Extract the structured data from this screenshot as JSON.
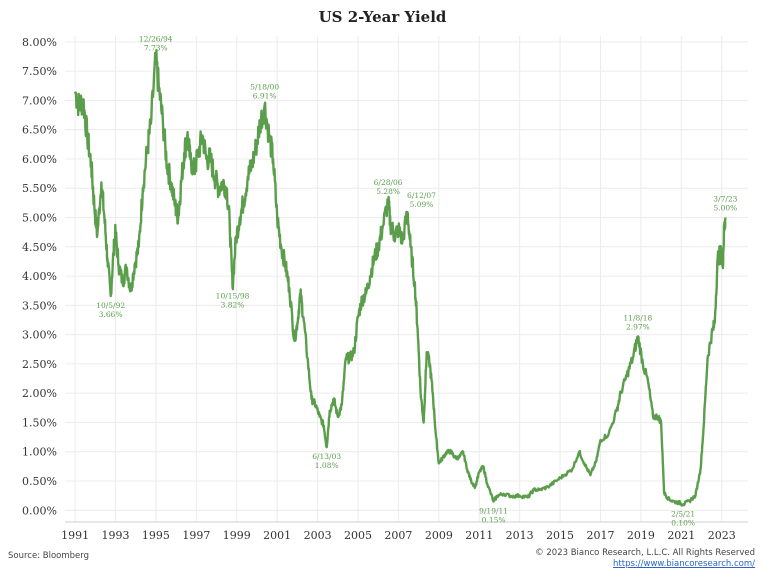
{
  "chart_data": {
    "type": "line",
    "title": "US 2-Year Yield",
    "xlabel": "",
    "ylabel": "",
    "x_range": [
      1990.5,
      2024.3
    ],
    "ylim": [
      -0.2,
      8.1
    ],
    "y_ticks": [
      0.0,
      0.5,
      1.0,
      1.5,
      2.0,
      2.5,
      3.0,
      3.5,
      4.0,
      4.5,
      5.0,
      5.5,
      6.0,
      6.5,
      7.0,
      7.5,
      8.0
    ],
    "y_tick_labels": [
      "0.00%",
      "0.50%",
      "1.00%",
      "1.50%",
      "2.00%",
      "2.50%",
      "3.00%",
      "3.50%",
      "4.00%",
      "4.50%",
      "5.00%",
      "5.50%",
      "6.00%",
      "6.50%",
      "7.00%",
      "7.50%",
      "8.00%"
    ],
    "x_ticks": [
      1991,
      1993,
      1995,
      1997,
      1999,
      2001,
      2003,
      2005,
      2007,
      2009,
      2011,
      2013,
      2015,
      2017,
      2019,
      2021,
      2023
    ],
    "x_tick_labels": [
      "1991",
      "1993",
      "1995",
      "1997",
      "1999",
      "2001",
      "2003",
      "2005",
      "2007",
      "2009",
      "2011",
      "2013",
      "2015",
      "2017",
      "2019",
      "2021",
      "2023"
    ],
    "grid": true,
    "series": [
      {
        "name": "US 2-Year Yield",
        "color": "#5a9e4b",
        "points": [
          [
            1991.0,
            7.15
          ],
          [
            1991.2,
            6.9
          ],
          [
            1991.4,
            7.0
          ],
          [
            1991.6,
            6.4
          ],
          [
            1991.8,
            5.9
          ],
          [
            1991.95,
            5.2
          ],
          [
            1992.1,
            4.7
          ],
          [
            1992.3,
            5.6
          ],
          [
            1992.45,
            5.0
          ],
          [
            1992.6,
            4.3
          ],
          [
            1992.76,
            3.66
          ],
          [
            1992.9,
            4.4
          ],
          [
            1993.0,
            4.75
          ],
          [
            1993.15,
            4.2
          ],
          [
            1993.35,
            3.9
          ],
          [
            1993.55,
            4.15
          ],
          [
            1993.75,
            3.75
          ],
          [
            1993.95,
            4.2
          ],
          [
            1994.15,
            4.5
          ],
          [
            1994.35,
            5.5
          ],
          [
            1994.55,
            6.1
          ],
          [
            1994.75,
            6.6
          ],
          [
            1994.99,
            7.73
          ],
          [
            1995.15,
            7.2
          ],
          [
            1995.35,
            6.6
          ],
          [
            1995.55,
            5.9
          ],
          [
            1995.75,
            5.6
          ],
          [
            1995.95,
            5.2
          ],
          [
            1996.1,
            5.0
          ],
          [
            1996.25,
            5.6
          ],
          [
            1996.4,
            6.1
          ],
          [
            1996.55,
            6.4
          ],
          [
            1996.7,
            6.0
          ],
          [
            1996.9,
            5.8
          ],
          [
            1997.1,
            6.1
          ],
          [
            1997.3,
            6.4
          ],
          [
            1997.5,
            6.0
          ],
          [
            1997.7,
            6.0
          ],
          [
            1997.9,
            5.7
          ],
          [
            1998.1,
            5.5
          ],
          [
            1998.3,
            5.6
          ],
          [
            1998.5,
            5.5
          ],
          [
            1998.65,
            4.9
          ],
          [
            1998.79,
            3.82
          ],
          [
            1998.95,
            4.6
          ],
          [
            1999.15,
            5.0
          ],
          [
            1999.35,
            5.3
          ],
          [
            1999.55,
            5.7
          ],
          [
            1999.75,
            5.9
          ],
          [
            1999.95,
            6.2
          ],
          [
            2000.15,
            6.6
          ],
          [
            2000.38,
            6.91
          ],
          [
            2000.6,
            6.4
          ],
          [
            2000.8,
            6.0
          ],
          [
            2001.0,
            5.0
          ],
          [
            2001.2,
            4.5
          ],
          [
            2001.4,
            4.2
          ],
          [
            2001.6,
            3.8
          ],
          [
            2001.85,
            2.9
          ],
          [
            2002.0,
            3.2
          ],
          [
            2002.15,
            3.7
          ],
          [
            2002.3,
            3.3
          ],
          [
            2002.5,
            2.6
          ],
          [
            2002.7,
            1.9
          ],
          [
            2002.9,
            1.8
          ],
          [
            2003.1,
            1.6
          ],
          [
            2003.3,
            1.45
          ],
          [
            2003.45,
            1.08
          ],
          [
            2003.6,
            1.7
          ],
          [
            2003.8,
            1.9
          ],
          [
            2004.0,
            1.6
          ],
          [
            2004.2,
            1.8
          ],
          [
            2004.4,
            2.6
          ],
          [
            2004.6,
            2.6
          ],
          [
            2004.8,
            2.7
          ],
          [
            2005.0,
            3.3
          ],
          [
            2005.2,
            3.6
          ],
          [
            2005.4,
            3.7
          ],
          [
            2005.6,
            4.0
          ],
          [
            2005.8,
            4.3
          ],
          [
            2006.0,
            4.5
          ],
          [
            2006.2,
            4.8
          ],
          [
            2006.49,
            5.28
          ],
          [
            2006.6,
            4.9
          ],
          [
            2006.8,
            4.7
          ],
          [
            2007.0,
            4.8
          ],
          [
            2007.2,
            4.6
          ],
          [
            2007.45,
            5.09
          ],
          [
            2007.6,
            4.5
          ],
          [
            2007.8,
            3.9
          ],
          [
            2007.95,
            3.1
          ],
          [
            2008.1,
            2.0
          ],
          [
            2008.25,
            1.5
          ],
          [
            2008.4,
            2.7
          ],
          [
            2008.55,
            2.5
          ],
          [
            2008.7,
            2.0
          ],
          [
            2008.85,
            1.3
          ],
          [
            2009.0,
            0.8
          ],
          [
            2009.2,
            0.9
          ],
          [
            2009.4,
            1.0
          ],
          [
            2009.6,
            1.0
          ],
          [
            2009.8,
            0.9
          ],
          [
            2010.0,
            0.9
          ],
          [
            2010.2,
            1.0
          ],
          [
            2010.4,
            0.7
          ],
          [
            2010.6,
            0.5
          ],
          [
            2010.8,
            0.4
          ],
          [
            2011.0,
            0.65
          ],
          [
            2011.2,
            0.75
          ],
          [
            2011.4,
            0.45
          ],
          [
            2011.71,
            0.15
          ],
          [
            2011.9,
            0.25
          ],
          [
            2012.2,
            0.28
          ],
          [
            2012.6,
            0.24
          ],
          [
            2013.0,
            0.25
          ],
          [
            2013.4,
            0.22
          ],
          [
            2013.7,
            0.35
          ],
          [
            2014.0,
            0.35
          ],
          [
            2014.4,
            0.4
          ],
          [
            2014.8,
            0.5
          ],
          [
            2015.2,
            0.6
          ],
          [
            2015.6,
            0.7
          ],
          [
            2015.95,
            1.0
          ],
          [
            2016.2,
            0.8
          ],
          [
            2016.5,
            0.6
          ],
          [
            2016.8,
            0.85
          ],
          [
            2017.0,
            1.2
          ],
          [
            2017.4,
            1.3
          ],
          [
            2017.8,
            1.7
          ],
          [
            2018.0,
            2.0
          ],
          [
            2018.3,
            2.3
          ],
          [
            2018.6,
            2.6
          ],
          [
            2018.85,
            2.97
          ],
          [
            2019.1,
            2.5
          ],
          [
            2019.35,
            2.2
          ],
          [
            2019.6,
            1.6
          ],
          [
            2019.85,
            1.6
          ],
          [
            2020.0,
            1.5
          ],
          [
            2020.15,
            0.3
          ],
          [
            2020.35,
            0.2
          ],
          [
            2020.6,
            0.15
          ],
          [
            2020.9,
            0.13
          ],
          [
            2021.09,
            0.1
          ],
          [
            2021.4,
            0.16
          ],
          [
            2021.7,
            0.25
          ],
          [
            2021.95,
            0.7
          ],
          [
            2022.1,
            1.4
          ],
          [
            2022.3,
            2.6
          ],
          [
            2022.5,
            3.0
          ],
          [
            2022.65,
            3.2
          ],
          [
            2022.8,
            4.3
          ],
          [
            2022.95,
            4.4
          ],
          [
            2023.05,
            4.2
          ],
          [
            2023.12,
            4.8
          ],
          [
            2023.18,
            5.0
          ]
        ]
      }
    ],
    "annotations": [
      {
        "date": "10/5/92",
        "value": "3.66%",
        "x": 1992.76,
        "y": 3.66,
        "pos": "below"
      },
      {
        "date": "12/26/94",
        "value": "7.73%",
        "x": 1994.99,
        "y": 7.73,
        "pos": "above"
      },
      {
        "date": "10/15/98",
        "value": "3.82%",
        "x": 1998.79,
        "y": 3.82,
        "pos": "below"
      },
      {
        "date": "5/18/00",
        "value": "6.91%",
        "x": 2000.38,
        "y": 6.91,
        "pos": "above"
      },
      {
        "date": "6/13/03",
        "value": "1.08%",
        "x": 2003.45,
        "y": 1.08,
        "pos": "below"
      },
      {
        "date": "6/28/06",
        "value": "5.28%",
        "x": 2006.49,
        "y": 5.28,
        "pos": "above"
      },
      {
        "date": "6/12/07",
        "value": "5.09%",
        "x": 2007.45,
        "y": 5.09,
        "pos": "above-right"
      },
      {
        "date": "9/19/11",
        "value": "0.15%",
        "x": 2011.71,
        "y": 0.15,
        "pos": "below"
      },
      {
        "date": "11/8/18",
        "value": "2.97%",
        "x": 2018.85,
        "y": 2.97,
        "pos": "above"
      },
      {
        "date": "2/5/21",
        "value": "0.10%",
        "x": 2021.09,
        "y": 0.1,
        "pos": "below"
      },
      {
        "date": "3/7/23",
        "value": "5.00%",
        "x": 2023.18,
        "y": 5.0,
        "pos": "above"
      }
    ]
  },
  "footer": {
    "source": "Source: Bloomberg",
    "copyright": "© 2023 Bianco Research, L.L.C. All Rights Reserved",
    "url": "https://www.biancoresearch.com/"
  }
}
